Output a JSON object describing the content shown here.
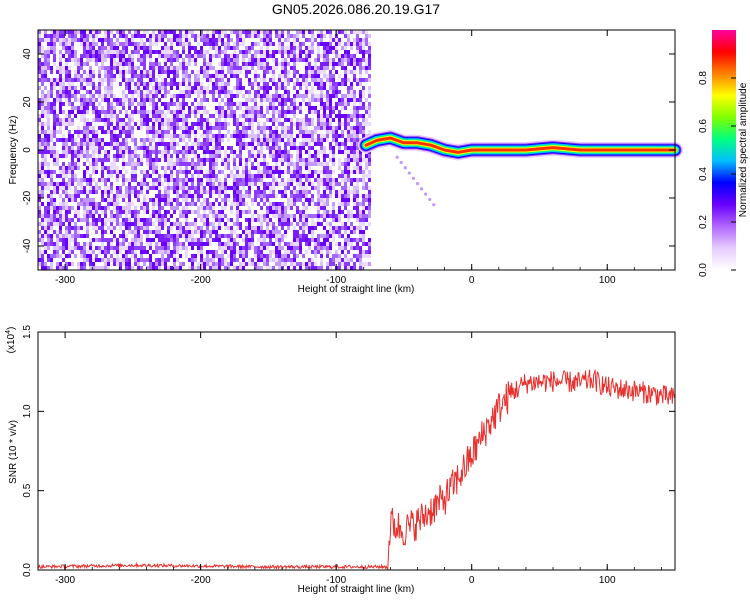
{
  "title": "GN05.2026.086.20.19.G17",
  "chart_data": [
    {
      "type": "heatmap",
      "title": "GN05.2026.086.20.19.G17",
      "xlabel": "Height of straight line (km)",
      "ylabel": "Frequency (Hz)",
      "xlim": [
        -320,
        150
      ],
      "ylim": [
        -50,
        50
      ],
      "xticks": [
        -300,
        -200,
        -100,
        0,
        100
      ],
      "yticks": [
        -40,
        -20,
        0,
        20,
        40
      ],
      "xtick_labels": [
        "-300",
        "-200",
        "-100",
        "0",
        "100"
      ],
      "ytick_labels": [
        "-40",
        "-20",
        "0",
        "20",
        "40"
      ],
      "noise_region_x": [
        -320,
        -75
      ],
      "signal_track": {
        "x": [
          -78,
          -70,
          -60,
          -50,
          -40,
          -30,
          -20,
          -10,
          0,
          20,
          40,
          60,
          80,
          100,
          120,
          140,
          150
        ],
        "frequency": [
          2,
          4,
          5,
          3,
          3,
          2,
          0,
          -1,
          0,
          0,
          0,
          1,
          0,
          0,
          0,
          0,
          0
        ]
      },
      "colorbar": {
        "label": "Normalized spectral amplitude",
        "range": [
          0,
          1
        ],
        "ticks": [
          0.0,
          0.2,
          0.4,
          0.6,
          0.8
        ],
        "tick_labels": [
          "0.0",
          "0.2",
          "0.4",
          "0.6",
          "0.8"
        ],
        "colors": [
          "#ffffff",
          "#e6ccff",
          "#b266ff",
          "#6a00ff",
          "#0000ff",
          "#00bfff",
          "#00ff80",
          "#80ff00",
          "#ffff00",
          "#ff8000",
          "#ff0000",
          "#ff00a0"
        ]
      }
    },
    {
      "type": "line",
      "xlabel": "Height of straight line (km)",
      "ylabel": "SNR (10 * v/v)",
      "scale_note": "(x10",
      "scale_exp": "4",
      "scale_close": ")",
      "xlim": [
        -320,
        150
      ],
      "ylim": [
        0,
        1.5
      ],
      "xticks": [
        -300,
        -200,
        -100,
        0,
        100
      ],
      "yticks": [
        0.0,
        0.5,
        1.0,
        1.5
      ],
      "xtick_labels": [
        "-300",
        "-200",
        "-100",
        "0",
        "100"
      ],
      "ytick_labels": [
        "0.0",
        "0.5",
        "1.0",
        "1.5"
      ],
      "color": "#e8312f",
      "series": [
        {
          "name": "SNR",
          "x": [
            -320,
            -250,
            -150,
            -80,
            -62,
            -60,
            -50,
            -40,
            -30,
            -20,
            -10,
            0,
            10,
            20,
            30,
            40,
            60,
            80,
            90,
            100,
            120,
            140,
            150
          ],
          "y": [
            0.02,
            0.03,
            0.02,
            0.02,
            0.02,
            0.3,
            0.25,
            0.3,
            0.38,
            0.45,
            0.58,
            0.72,
            0.88,
            1.02,
            1.12,
            1.18,
            1.19,
            1.18,
            1.2,
            1.15,
            1.13,
            1.1,
            1.08
          ]
        }
      ]
    }
  ]
}
